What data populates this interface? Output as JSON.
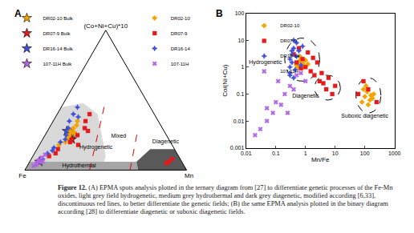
{
  "caption": {
    "label": "Figure 12.",
    "text": "(A) EPMA spots analysis plotted in the ternary diagram from [27] to differentiate genetic processes of the Fe-Mn oxides, light grey field hydrogenetic, medium grey hydrothermal and dark grey diagenetic, modified according [6,33], discontinuous red lines, to better differentiate the genetic fields; (B) the same EPMA analysis plotted in the binary diagram according [28] to differentiate diagenetic or suboxic diagenetic fields."
  },
  "chart_data": [
    {
      "panel": "A",
      "type": "ternary",
      "axes": {
        "a": "(Co+Ni+Cu)*10",
        "b": "Fe",
        "c": "Mn"
      },
      "grid": false,
      "tick_labels": false,
      "fields": [
        {
          "color": "#a6a6a6",
          "a": [
            0,
            0,
            6,
            6
          ],
          "b": [
            100,
            30,
            28,
            94
          ],
          "c": [
            0,
            70,
            66,
            0
          ]
        },
        {
          "color": "#d9d9d9",
          "a": [
            6,
            45,
            48,
            40,
            25,
            10,
            6
          ],
          "b": [
            94,
            55,
            40,
            35,
            40,
            45,
            48
          ],
          "c": [
            0,
            0,
            12,
            25,
            35,
            45,
            46
          ]
        },
        {
          "color": "#595959",
          "a": [
            0,
            0,
            15,
            15,
            6
          ],
          "b": [
            30,
            0,
            0,
            15,
            28
          ],
          "c": [
            70,
            100,
            85,
            70,
            66
          ]
        }
      ],
      "boundaries": [
        {
          "color": "#e00000",
          "line_style": "dash",
          "a": [
            0,
            50
          ],
          "b": [
            60,
            25
          ],
          "c": [
            40,
            25
          ]
        },
        {
          "color": "#e00000",
          "line_style": "dash",
          "a": [
            0,
            30
          ],
          "b": [
            35,
            15
          ],
          "c": [
            65,
            55
          ]
        }
      ],
      "annotations": [
        {
          "text": "Hydrogenetic",
          "a": 16,
          "b": 48,
          "c": 36
        },
        {
          "text": "Hydrothermal",
          "a": 3,
          "b": 65,
          "c": 32
        },
        {
          "text": "Mixed",
          "a": 24,
          "b": 30,
          "c": 46
        },
        {
          "text": "Diagenetic",
          "a": 20,
          "b": 3,
          "c": 77
        }
      ],
      "series": [
        {
          "name": "DR02-10 Bulk",
          "color": "#f5a300",
          "marker": "star",
          "legend": "top left",
          "a": [
            26
          ],
          "b": [
            58
          ],
          "c": [
            16
          ]
        },
        {
          "name": "DR07-9 Bulk",
          "color": "#e41a1c",
          "marker": "star",
          "legend": "top left",
          "a": [
            22
          ],
          "b": [
            60
          ],
          "c": [
            18
          ]
        },
        {
          "name": "DR16-14 Bulk",
          "color": "#3f51d8",
          "marker": "star",
          "legend": "top left",
          "a": [
            28
          ],
          "b": [
            60
          ],
          "c": [
            12
          ]
        },
        {
          "name": "107-11H Bulk",
          "color": "#b266e8",
          "marker": "star",
          "legend": "top left",
          "a": [
            6
          ],
          "b": [
            88
          ],
          "c": [
            6
          ]
        },
        {
          "name": "DR02-10",
          "color": "#f5a300",
          "marker": "diamond",
          "legend": "top right",
          "a": [
            20,
            25,
            30,
            28,
            35,
            22,
            18,
            32,
            27,
            24
          ],
          "b": [
            65,
            60,
            55,
            58,
            50,
            63,
            70,
            52,
            56,
            61
          ],
          "c": [
            15,
            15,
            15,
            14,
            15,
            15,
            12,
            16,
            17,
            15
          ]
        },
        {
          "name": "DR07-9",
          "color": "#e41a1c",
          "marker": "square",
          "legend": "top right",
          "a": [
            10,
            15,
            20,
            25,
            30,
            35,
            40,
            12,
            5,
            8,
            6,
            18,
            28
          ],
          "b": [
            80,
            72,
            62,
            55,
            48,
            45,
            40,
            75,
            10,
            5,
            8,
            58,
            47
          ],
          "c": [
            10,
            13,
            18,
            20,
            22,
            20,
            20,
            13,
            85,
            87,
            86,
            24,
            25
          ]
        },
        {
          "name": "DR16-14",
          "color": "#3f51d8",
          "marker": "star-diamond",
          "legend": "top right",
          "a": [
            8,
            12,
            16,
            20,
            25,
            30,
            35,
            40,
            45,
            14,
            22,
            38
          ],
          "b": [
            85,
            80,
            74,
            68,
            62,
            58,
            55,
            50,
            45,
            76,
            64,
            48
          ],
          "c": [
            7,
            8,
            10,
            12,
            13,
            12,
            10,
            10,
            10,
            10,
            14,
            14
          ]
        },
        {
          "name": "107-11H",
          "color": "#b266e8",
          "marker": "x",
          "legend": "top right",
          "a": [
            3,
            5,
            7,
            9,
            4,
            11,
            6
          ],
          "b": [
            93,
            90,
            88,
            85,
            91,
            82,
            86
          ],
          "c": [
            4,
            5,
            5,
            6,
            5,
            7,
            8
          ]
        }
      ]
    },
    {
      "panel": "B",
      "type": "scatter",
      "log": true,
      "grid": false,
      "legend": "top left",
      "x_label": "Mn/Fe",
      "y_label": "Co/(Ni+Cu)",
      "xlim": [
        0.01,
        1000
      ],
      "ylim": [
        0.001,
        100
      ],
      "xticks": [
        0.01,
        0.1,
        1,
        10,
        100,
        1000
      ],
      "yticks": [
        0.001,
        0.01,
        0.1,
        1,
        10,
        100
      ],
      "fields": [
        {
          "color": "#000000",
          "line_style": "dash",
          "x": [
            0.2,
            3
          ],
          "y": [
            0.3,
            12
          ]
        },
        {
          "color": "#000000",
          "line_style": "dash",
          "x": [
            2,
            15
          ],
          "y": [
            0.06,
            0.5
          ]
        },
        {
          "color": "#000000",
          "line_style": "dash",
          "x": [
            50,
            350
          ],
          "y": [
            0.02,
            0.4
          ]
        }
      ],
      "annotations": [
        {
          "text": "Hydrogenetic",
          "x": 0.045,
          "y": 1.5
        },
        {
          "text": "Diagenetic",
          "x": 1.0,
          "y": 0.08
        },
        {
          "text": "Suboxic diagenetic",
          "x": 100,
          "y": 0.015
        }
      ],
      "series": [
        {
          "name": "DR02-10",
          "color": "#f5a300",
          "marker": "diamond",
          "x": [
            0.5,
            0.6,
            0.7,
            0.8,
            0.9,
            1.0,
            0.65,
            0.75,
            1.2,
            0.55,
            80,
            100,
            120,
            150,
            200,
            110,
            90,
            160,
            130,
            180
          ],
          "y": [
            1.2,
            1.6,
            2.0,
            1.4,
            1.1,
            1.8,
            2.5,
            0.9,
            1.3,
            1.0,
            0.05,
            0.08,
            0.12,
            0.06,
            0.1,
            0.2,
            0.15,
            0.09,
            0.04,
            0.07
          ]
        },
        {
          "name": "DR07-9",
          "color": "#e41a1c",
          "marker": "square",
          "x": [
            0.4,
            0.6,
            0.8,
            1.0,
            1.5,
            2,
            3,
            4,
            5,
            8,
            1.2,
            0.7,
            2.5,
            6,
            10,
            0.5,
            1.8,
            3.5,
            60,
            90,
            130,
            250
          ],
          "y": [
            3,
            5,
            2,
            1,
            0.7,
            0.5,
            0.3,
            0.25,
            0.15,
            0.1,
            3.5,
            0.9,
            1.5,
            0.4,
            0.2,
            1.5,
            2.2,
            0.6,
            0.1,
            0.3,
            0.15,
            0.05
          ]
        },
        {
          "name": "DR16-14",
          "color": "#3f51d8",
          "marker": "star-diamond",
          "x": [
            0.3,
            0.35,
            0.4,
            0.5,
            0.35,
            0.3,
            0.45,
            0.6,
            0.8,
            0.3,
            0.4,
            0.5,
            0.4,
            0.7,
            0.3,
            0.35
          ],
          "y": [
            2,
            3,
            5,
            8,
            1.5,
            1,
            0.8,
            4,
            6,
            0.5,
            0.4,
            2.5,
            10,
            1.2,
            0.6,
            4
          ]
        },
        {
          "name": "107-11H",
          "color": "#b266e8",
          "marker": "x",
          "x": [
            0.02,
            0.03,
            0.05,
            0.08,
            0.1,
            0.15,
            0.2,
            0.3,
            0.5,
            0.05,
            0.12,
            0.25,
            0.4,
            0.7,
            1.0
          ],
          "y": [
            0.003,
            0.005,
            0.01,
            0.02,
            0.05,
            0.04,
            0.1,
            0.2,
            0.5,
            0.03,
            0.3,
            0.02,
            0.15,
            0.6,
            0.3
          ]
        }
      ]
    }
  ]
}
